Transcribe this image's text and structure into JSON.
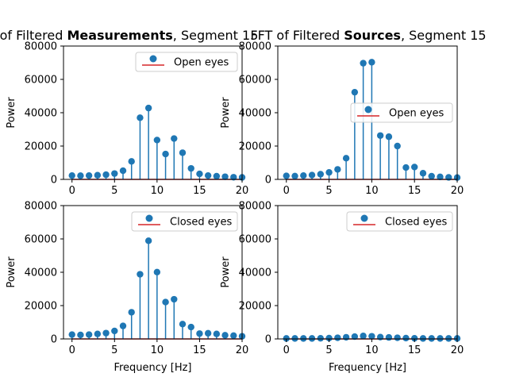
{
  "figure": {
    "titles": [
      {
        "prefix": "FFT of Filtered ",
        "bold": "Measurements",
        "suffix": ", Segment 15"
      },
      {
        "prefix": "FFT of Filtered ",
        "bold": "Sources",
        "suffix": ", Segment 15"
      }
    ]
  },
  "chart_data": [
    {
      "type": "stem",
      "panel": "top-left",
      "ylabel": "Power",
      "xlabel": "",
      "xlim": [
        -1,
        20
      ],
      "ylim": [
        0,
        80000
      ],
      "xticks": [
        0,
        5,
        10,
        15,
        20
      ],
      "yticks": [
        0,
        20000,
        40000,
        60000,
        80000
      ],
      "legend": {
        "label": "Open eyes",
        "position": "upper right"
      },
      "x": [
        0,
        1,
        2,
        3,
        4,
        5,
        6,
        7,
        8,
        9,
        10,
        11,
        12,
        13,
        14,
        15,
        16,
        17,
        18,
        19,
        20
      ],
      "values": [
        2300,
        2200,
        2300,
        2500,
        2800,
        3500,
        5200,
        10800,
        37000,
        42800,
        23600,
        15200,
        24500,
        16000,
        6600,
        3300,
        2300,
        1900,
        1600,
        1300,
        1200
      ]
    },
    {
      "type": "stem",
      "panel": "top-right",
      "ylabel": "Power",
      "xlabel": "",
      "xlim": [
        -1,
        20
      ],
      "ylim": [
        0,
        80000
      ],
      "xticks": [
        0,
        5,
        10,
        15,
        20
      ],
      "yticks": [
        0,
        20000,
        40000,
        60000,
        80000
      ],
      "legend": {
        "label": "Open eyes",
        "position": "center right"
      },
      "x": [
        0,
        1,
        2,
        3,
        4,
        5,
        6,
        7,
        8,
        9,
        10,
        11,
        12,
        13,
        14,
        15,
        16,
        17,
        18,
        19,
        20
      ],
      "values": [
        2100,
        2000,
        2300,
        2600,
        3100,
        4200,
        6000,
        12700,
        52300,
        69700,
        70300,
        26300,
        25600,
        20000,
        7100,
        7400,
        3700,
        1900,
        1500,
        1200,
        1100
      ]
    },
    {
      "type": "stem",
      "panel": "bottom-left",
      "ylabel": "Power",
      "xlabel": "Frequency [Hz]",
      "xlim": [
        -1,
        20
      ],
      "ylim": [
        0,
        80000
      ],
      "xticks": [
        0,
        5,
        10,
        15,
        20
      ],
      "yticks": [
        0,
        20000,
        40000,
        60000,
        80000
      ],
      "legend": {
        "label": "Closed eyes",
        "position": "upper right"
      },
      "x": [
        0,
        1,
        2,
        3,
        4,
        5,
        6,
        7,
        8,
        9,
        10,
        11,
        12,
        13,
        14,
        15,
        16,
        17,
        18,
        19,
        20
      ],
      "values": [
        2600,
        2400,
        2600,
        3000,
        3500,
        4800,
        7800,
        16000,
        38800,
        58900,
        40100,
        22100,
        23800,
        8900,
        7100,
        3200,
        3400,
        3000,
        2200,
        2000,
        1600
      ]
    },
    {
      "type": "stem",
      "panel": "bottom-right",
      "ylabel": "Power",
      "xlabel": "Frequency [Hz]",
      "xlim": [
        -1,
        20
      ],
      "ylim": [
        0,
        80000
      ],
      "xticks": [
        0,
        5,
        10,
        15,
        20
      ],
      "yticks": [
        0,
        20000,
        40000,
        60000,
        80000
      ],
      "legend": {
        "label": "Closed eyes",
        "position": "upper right"
      },
      "x": [
        0,
        1,
        2,
        3,
        4,
        5,
        6,
        7,
        8,
        9,
        10,
        11,
        12,
        13,
        14,
        15,
        16,
        17,
        18,
        19,
        20
      ],
      "values": [
        300,
        300,
        300,
        300,
        400,
        500,
        700,
        1000,
        1400,
        1800,
        1600,
        1100,
        900,
        700,
        500,
        400,
        300,
        300,
        300,
        300,
        300
      ]
    }
  ],
  "colors": {
    "stem": "#1f77b4",
    "baseline": "#d62728",
    "axes": "#000000"
  }
}
